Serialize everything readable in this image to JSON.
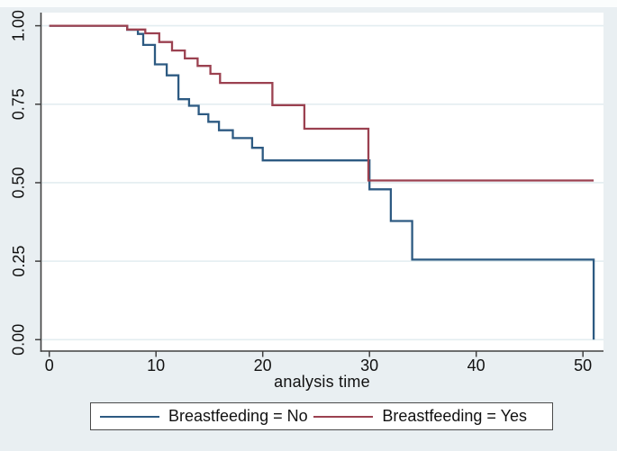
{
  "figure": {
    "background": "#e9eff2",
    "plot_background": "#ffffff",
    "axis_color": "#404040",
    "grid_color": "#e3edf0",
    "text_color": "#111111"
  },
  "chart_data": {
    "type": "line",
    "subtype": "kaplan-meier-step",
    "title": "",
    "xlabel": "analysis time",
    "ylabel": "",
    "xlim": [
      0,
      51.5
    ],
    "ylim": [
      0.0,
      1.0
    ],
    "grid": "horizontal-only",
    "legend_position": "bottom-outside-boxed",
    "x_ticks": [
      {
        "v": 0,
        "label": "0"
      },
      {
        "v": 10,
        "label": "10"
      },
      {
        "v": 20,
        "label": "20"
      },
      {
        "v": 30,
        "label": "30"
      },
      {
        "v": 40,
        "label": "40"
      },
      {
        "v": 50,
        "label": "50"
      }
    ],
    "y_ticks": [
      {
        "v": 0.0,
        "label": "0.00"
      },
      {
        "v": 0.25,
        "label": "0.25"
      },
      {
        "v": 0.5,
        "label": "0.50"
      },
      {
        "v": 0.75,
        "label": "0.75"
      },
      {
        "v": 1.0,
        "label": "1.00"
      }
    ],
    "series": [
      {
        "name": "Breastfeeding = No",
        "color": "#2d5a82",
        "t_end": 51,
        "points": [
          [
            0,
            1.0
          ],
          [
            7.3,
            0.987
          ],
          [
            8.3,
            0.974
          ],
          [
            8.8,
            0.939
          ],
          [
            9.9,
            0.877
          ],
          [
            11.0,
            0.842
          ],
          [
            12.1,
            0.766
          ],
          [
            13.1,
            0.745
          ],
          [
            14.0,
            0.718
          ],
          [
            14.9,
            0.694
          ],
          [
            15.9,
            0.667
          ],
          [
            17.2,
            0.642
          ],
          [
            19.0,
            0.611
          ],
          [
            20.0,
            0.571
          ],
          [
            30.0,
            0.479
          ],
          [
            32.0,
            0.378
          ],
          [
            34.0,
            0.255
          ],
          [
            51.0,
            0.0
          ]
        ]
      },
      {
        "name": "Breastfeeding = Yes",
        "color": "#9b4150",
        "t_end": 51,
        "points": [
          [
            0,
            1.0
          ],
          [
            7.3,
            0.988
          ],
          [
            9.0,
            0.976
          ],
          [
            10.3,
            0.948
          ],
          [
            11.5,
            0.921
          ],
          [
            12.7,
            0.896
          ],
          [
            13.9,
            0.872
          ],
          [
            15.1,
            0.847
          ],
          [
            16.0,
            0.818
          ],
          [
            20.9,
            0.747
          ],
          [
            23.9,
            0.672
          ],
          [
            29.9,
            0.507
          ]
        ]
      }
    ]
  },
  "x_axis": {
    "title": "analysis time"
  },
  "legend": {
    "items": [
      {
        "label": "Breastfeeding = No",
        "color": "#2d5a82"
      },
      {
        "label": "Breastfeeding = Yes",
        "color": "#9b4150"
      }
    ]
  }
}
